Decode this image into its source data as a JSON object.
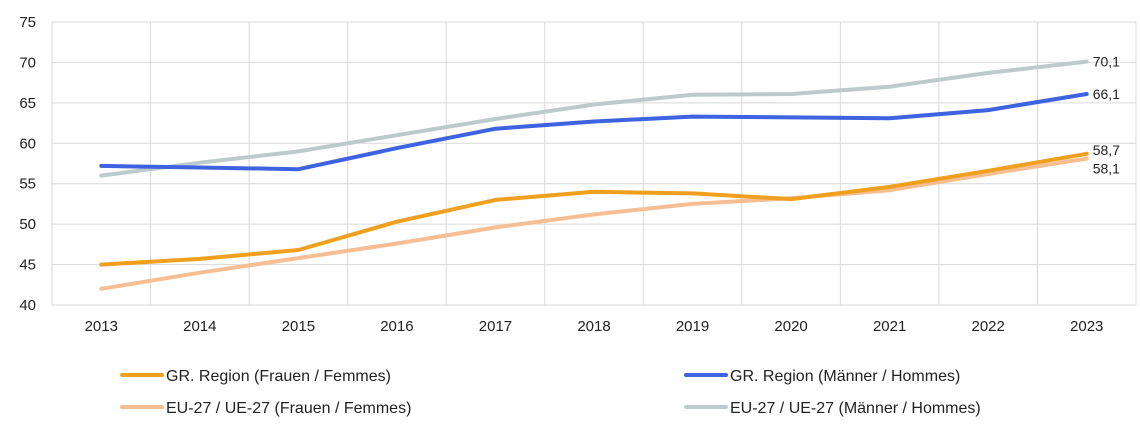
{
  "chart_data": {
    "type": "line",
    "x": [
      "2013",
      "2014",
      "2015",
      "2016",
      "2017",
      "2018",
      "2019",
      "2020",
      "2021",
      "2022",
      "2023"
    ],
    "ylim": [
      40,
      75
    ],
    "yticks": [
      "40",
      "45",
      "50",
      "55",
      "60",
      "65",
      "70",
      "75"
    ],
    "grid": true,
    "legend_position": "bottom",
    "series": [
      {
        "name": "GR. Region (Frauen / Femmes)",
        "color": "#F0A01E",
        "values": [
          45.0,
          45.7,
          46.8,
          50.3,
          53.0,
          54.0,
          53.8,
          53.1,
          54.6,
          56.6,
          58.7
        ]
      },
      {
        "name": "GR. Region (Männer / Hommes)",
        "color": "#3D63E0",
        "values": [
          57.2,
          57.0,
          56.8,
          59.4,
          61.8,
          62.7,
          63.3,
          63.2,
          63.1,
          64.1,
          66.1
        ]
      },
      {
        "name": "EU-27 / UE-27 (Frauen / Femmes)",
        "color": "#F5BE93",
        "values": [
          42.0,
          44.0,
          45.8,
          47.6,
          49.6,
          51.2,
          52.5,
          53.2,
          54.2,
          56.2,
          58.1
        ]
      },
      {
        "name": "EU-27 / UE-27 (Männer / Hommes)",
        "color": "#BCCACC",
        "values": [
          56.0,
          57.6,
          59.0,
          61.0,
          63.0,
          64.8,
          66.0,
          66.1,
          67.0,
          68.7,
          70.1
        ]
      }
    ],
    "end_labels": [
      {
        "series": 3,
        "text": "70,1"
      },
      {
        "series": 1,
        "text": "66,1"
      },
      {
        "series": 0,
        "text": "58,7"
      },
      {
        "series": 2,
        "text": "58,1"
      }
    ]
  }
}
